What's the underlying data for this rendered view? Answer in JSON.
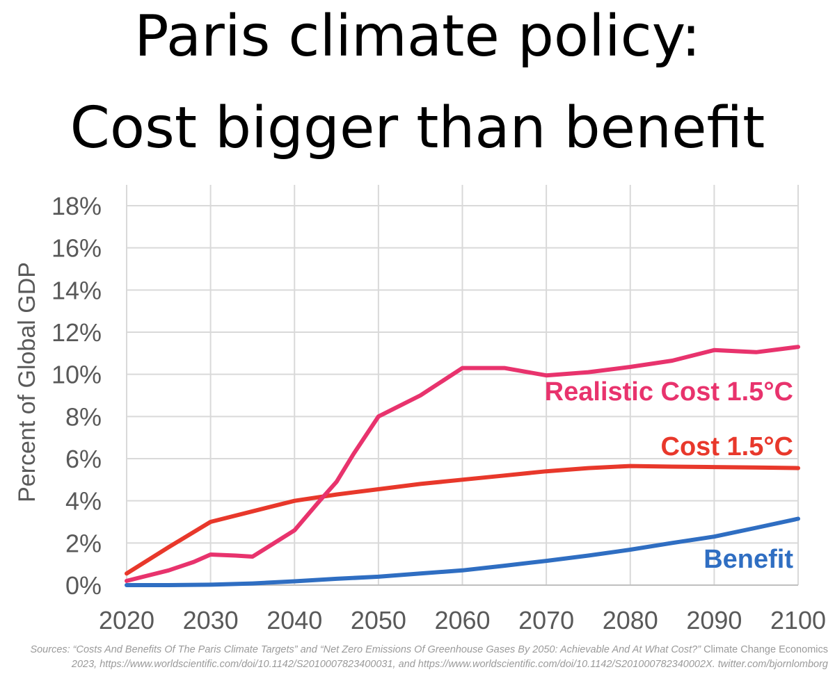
{
  "title": {
    "line1": "Paris climate policy:",
    "line2": "Cost bigger than benefit"
  },
  "chart_data": {
    "type": "line",
    "title": "Paris climate policy: Cost bigger than benefit",
    "xlabel": "",
    "ylabel": "Percent of Global GDP",
    "xlim": [
      2020,
      2100
    ],
    "ylim": [
      0,
      18
    ],
    "x_ticks": [
      2020,
      2030,
      2040,
      2050,
      2060,
      2070,
      2080,
      2090,
      2100
    ],
    "y_ticks": [
      0,
      2,
      4,
      6,
      8,
      10,
      12,
      14,
      16,
      18
    ],
    "y_tick_labels": [
      "0%",
      "2%",
      "4%",
      "6%",
      "8%",
      "10%",
      "12%",
      "14%",
      "16%",
      "18%"
    ],
    "grid": true,
    "series": [
      {
        "name": "Realistic Cost 1.5°C",
        "label": "Realistic Cost 1.5°C",
        "color": "#E8336D",
        "x": [
          2020,
          2025,
          2028,
          2030,
          2033,
          2035,
          2038,
          2040,
          2043,
          2045,
          2047,
          2050,
          2052,
          2055,
          2060,
          2063,
          2065,
          2070,
          2075,
          2080,
          2085,
          2090,
          2095,
          2100
        ],
        "values": [
          0.2,
          0.7,
          1.1,
          1.45,
          1.4,
          1.35,
          2.1,
          2.6,
          4.0,
          4.9,
          6.2,
          8.0,
          8.4,
          9.0,
          10.3,
          10.3,
          10.3,
          9.95,
          10.1,
          10.35,
          10.65,
          11.15,
          11.05,
          11.3
        ]
      },
      {
        "name": "Cost 1.5°C",
        "label": "Cost 1.5°C",
        "color": "#E8382B",
        "x": [
          2020,
          2025,
          2030,
          2035,
          2040,
          2045,
          2050,
          2055,
          2060,
          2065,
          2070,
          2075,
          2080,
          2085,
          2090,
          2095,
          2100
        ],
        "values": [
          0.55,
          1.8,
          3.0,
          3.5,
          4.0,
          4.3,
          4.55,
          4.8,
          5.0,
          5.2,
          5.4,
          5.55,
          5.65,
          5.62,
          5.6,
          5.58,
          5.55
        ]
      },
      {
        "name": "Benefit",
        "label": "Benefit",
        "color": "#2F6EC2",
        "x": [
          2020,
          2025,
          2030,
          2035,
          2040,
          2045,
          2050,
          2055,
          2060,
          2065,
          2070,
          2075,
          2080,
          2085,
          2090,
          2095,
          2100
        ],
        "values": [
          0.0,
          0.0,
          0.02,
          0.08,
          0.18,
          0.3,
          0.4,
          0.55,
          0.7,
          0.92,
          1.15,
          1.4,
          1.68,
          2.0,
          2.3,
          2.72,
          3.15
        ]
      }
    ]
  },
  "sources": {
    "part1": "Sources: “Costs And Benefits Of The Paris Climate Targets” and “Net Zero Emissions Of Greenhouse Gases By 2050: Achievable And At What Cost?”",
    "part2": " Climate Change Economics ",
    "part3": "2023, https://www.worldscientific.com/doi/10.1142/S2010007823400031, and https://www.worldscientific.com/doi/10.1142/S201000782340002X. twitter.com/bjornlomborg"
  }
}
